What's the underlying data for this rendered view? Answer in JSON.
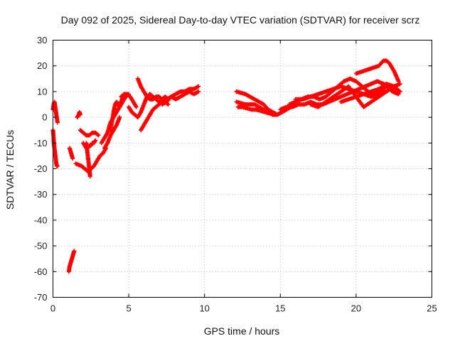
{
  "chart_data": {
    "type": "scatter",
    "title": "Day 092 of 2025, Sidereal Day-to-day VTEC variation (SDTVAR) for receiver scrz",
    "xlabel": "GPS time / hours",
    "ylabel": "SDTVAR / TECUs",
    "xlim": [
      0,
      25
    ],
    "ylim": [
      -70,
      30
    ],
    "xticks": [
      0,
      5,
      10,
      15,
      20,
      25
    ],
    "yticks": [
      -70,
      -60,
      -50,
      -40,
      -30,
      -20,
      -10,
      0,
      10,
      20,
      30
    ],
    "grid": true,
    "marker": "plus",
    "series": [
      {
        "name": "SDTVAR",
        "color": "#ff0000",
        "segments": [
          {
            "x": [
              0.0,
              0.05,
              0.1,
              0.15,
              0.2,
              0.25,
              0.3
            ],
            "y": [
              3,
              5,
              6,
              4,
              2,
              0,
              -2
            ]
          },
          {
            "x": [
              0.0,
              0.03,
              0.06,
              0.1,
              0.14,
              0.18,
              0.22,
              0.26,
              0.3
            ],
            "y": [
              -5,
              -7,
              -10,
              -12,
              -14,
              -16,
              -18,
              -19,
              -19
            ]
          },
          {
            "x": [
              1.05,
              1.1,
              1.15,
              1.2,
              1.25,
              1.3,
              1.35,
              1.4
            ],
            "y": [
              -60,
              -58,
              -57,
              -56,
              -55,
              -54,
              -53,
              -52
            ]
          },
          {
            "x": [
              1.1,
              1.2,
              1.3
            ],
            "y": [
              -12,
              -14,
              -16
            ]
          },
          {
            "x": [
              1.6,
              1.7,
              1.75,
              1.8
            ],
            "y": [
              0,
              1,
              2,
              1
            ]
          },
          {
            "x": [
              1.5,
              1.7,
              1.9,
              2.1,
              2.3,
              2.5,
              2.7,
              2.9,
              3.1,
              3.3,
              3.5
            ],
            "y": [
              -18,
              -18.5,
              -19,
              -20,
              -21,
              -20,
              -19,
              -17,
              -15,
              -14,
              -12
            ]
          },
          {
            "x": [
              1.8,
              2.0,
              2.2,
              2.4,
              2.6,
              2.8,
              3.0
            ],
            "y": [
              -5,
              -6,
              -7,
              -7,
              -6,
              -6,
              -7
            ]
          },
          {
            "x": [
              2.0,
              2.1,
              2.2,
              2.3,
              2.4,
              2.5,
              2.6,
              2.7,
              2.8
            ],
            "y": [
              -10,
              -11,
              -12,
              -12,
              -11,
              -11,
              -10,
              -10,
              -9
            ]
          },
          {
            "x": [
              2.2,
              2.3,
              2.4,
              2.45
            ],
            "y": [
              -10,
              -15,
              -20,
              -23
            ]
          },
          {
            "x": [
              3.2,
              3.4,
              3.6,
              3.8,
              4.0,
              4.2,
              4.4,
              4.6,
              4.8,
              5.0
            ],
            "y": [
              -10,
              -8,
              -6,
              -2,
              0,
              2,
              4,
              6,
              8,
              9
            ]
          },
          {
            "x": [
              3.4,
              3.6,
              3.8,
              4.0,
              4.2,
              4.4
            ],
            "y": [
              -12,
              -10,
              -7,
              -5,
              -3,
              0
            ]
          },
          {
            "x": [
              3.8,
              4.0,
              4.1,
              4.2,
              4.3,
              4.4,
              4.5,
              4.6
            ],
            "y": [
              -5,
              2,
              5,
              6,
              5,
              4,
              6,
              8
            ]
          },
          {
            "x": [
              4.5,
              4.7,
              4.9,
              5.1,
              5.3,
              5.5
            ],
            "y": [
              8,
              9,
              9,
              8,
              6,
              4
            ]
          },
          {
            "x": [
              5.0,
              5.2,
              5.4,
              5.6,
              5.8,
              6.0,
              6.2,
              6.4,
              6.6,
              6.8,
              7.0,
              7.2,
              7.4,
              7.6
            ],
            "y": [
              4,
              2,
              1,
              0,
              2,
              5,
              8,
              9,
              8,
              7,
              6,
              7,
              8,
              7
            ]
          },
          {
            "x": [
              5.6,
              5.8,
              6.0,
              6.2,
              6.4,
              6.6,
              6.8,
              7.0,
              7.2,
              7.4
            ],
            "y": [
              15,
              12,
              10,
              8,
              7,
              7,
              8,
              8,
              7,
              7
            ]
          },
          {
            "x": [
              5.8,
              6.0,
              6.2,
              6.4,
              6.6,
              6.8,
              7.0,
              7.2,
              7.4,
              7.6
            ],
            "y": [
              -5,
              -3,
              -1,
              1,
              3,
              4,
              5,
              6,
              6,
              5
            ]
          },
          {
            "x": [
              7.2,
              7.5,
              7.8,
              8.1,
              8.4,
              8.7,
              9.0,
              9.3,
              9.6
            ],
            "y": [
              5,
              6,
              8,
              9,
              10,
              10,
              11,
              11,
              12
            ]
          },
          {
            "x": [
              7.5,
              7.8,
              8.1,
              8.4,
              8.7,
              9.0,
              9.3,
              9.6
            ],
            "y": [
              7,
              8,
              7,
              8,
              9,
              10,
              9,
              10
            ]
          },
          {
            "x": [
              12.1,
              12.4,
              12.7,
              13.0,
              13.3,
              13.6,
              13.9,
              14.2,
              14.5,
              14.8,
              15.1,
              15.4
            ],
            "y": [
              10,
              9.5,
              9,
              8,
              7,
              6,
              5,
              3,
              2,
              1,
              2,
              3
            ]
          },
          {
            "x": [
              12.1,
              12.4,
              12.7,
              13.0,
              13.3,
              13.6,
              13.9,
              14.2,
              14.5,
              14.8,
              15.1,
              15.4,
              15.7,
              16.0
            ],
            "y": [
              6,
              5.5,
              5,
              5,
              5,
              4,
              3,
              2,
              1,
              1,
              2,
              3,
              4,
              5
            ]
          },
          {
            "x": [
              12.2,
              12.5,
              12.8,
              13.1,
              13.4,
              13.7,
              14.0,
              14.3,
              14.6
            ],
            "y": [
              4,
              4,
              3.5,
              3,
              3,
              2.5,
              2,
              1.5,
              1
            ]
          },
          {
            "x": [
              15.0,
              15.4,
              15.8,
              16.2,
              16.6,
              17.0,
              17.4,
              17.8,
              18.2,
              18.6,
              19.0,
              19.4,
              19.8,
              20.2,
              20.6,
              21.0,
              21.4,
              21.8,
              22.2,
              22.6
            ],
            "y": [
              3,
              4,
              4,
              5,
              5,
              6,
              5,
              5,
              6,
              7,
              8,
              9,
              10,
              11,
              12,
              13,
              14,
              13,
              12,
              11
            ]
          },
          {
            "x": [
              15.6,
              16.0,
              16.4,
              16.8,
              17.2,
              17.6,
              18.0,
              18.4,
              18.8,
              19.2,
              19.6,
              20.0,
              20.4,
              20.8,
              21.2,
              21.6,
              22.0,
              22.4,
              22.8
            ],
            "y": [
              5,
              6,
              7,
              8,
              8,
              7,
              8,
              10,
              12,
              14,
              15,
              14,
              12,
              10,
              9,
              10,
              12,
              10,
              9
            ]
          },
          {
            "x": [
              16.0,
              16.5,
              17.0,
              17.5,
              18.0,
              18.5,
              19.0,
              19.5,
              20.0,
              20.5,
              21.0,
              21.5,
              22.0
            ],
            "y": [
              7,
              7,
              8,
              9,
              10,
              11,
              12,
              11,
              10,
              9,
              8,
              9,
              10
            ]
          },
          {
            "x": [
              17.0,
              17.5,
              18.0,
              18.5,
              19.0,
              19.5,
              20.0,
              20.5,
              21.0,
              21.5,
              22.0,
              22.5,
              22.9
            ],
            "y": [
              5,
              4,
              6,
              8,
              10,
              12,
              8,
              4,
              6,
              8,
              10,
              12,
              13
            ]
          },
          {
            "x": [
              19.0,
              19.5,
              20.0,
              20.5,
              21.0,
              21.5,
              22.0,
              22.5,
              22.9
            ],
            "y": [
              6,
              7,
              8,
              9,
              10,
              11,
              13,
              12,
              10
            ]
          },
          {
            "x": [
              20.0,
              20.5,
              21.0,
              21.5,
              21.8,
              22.0,
              22.2,
              22.5,
              22.8
            ],
            "y": [
              17,
              18,
              19,
              20,
              22,
              22,
              21,
              18,
              14
            ]
          }
        ]
      }
    ]
  }
}
